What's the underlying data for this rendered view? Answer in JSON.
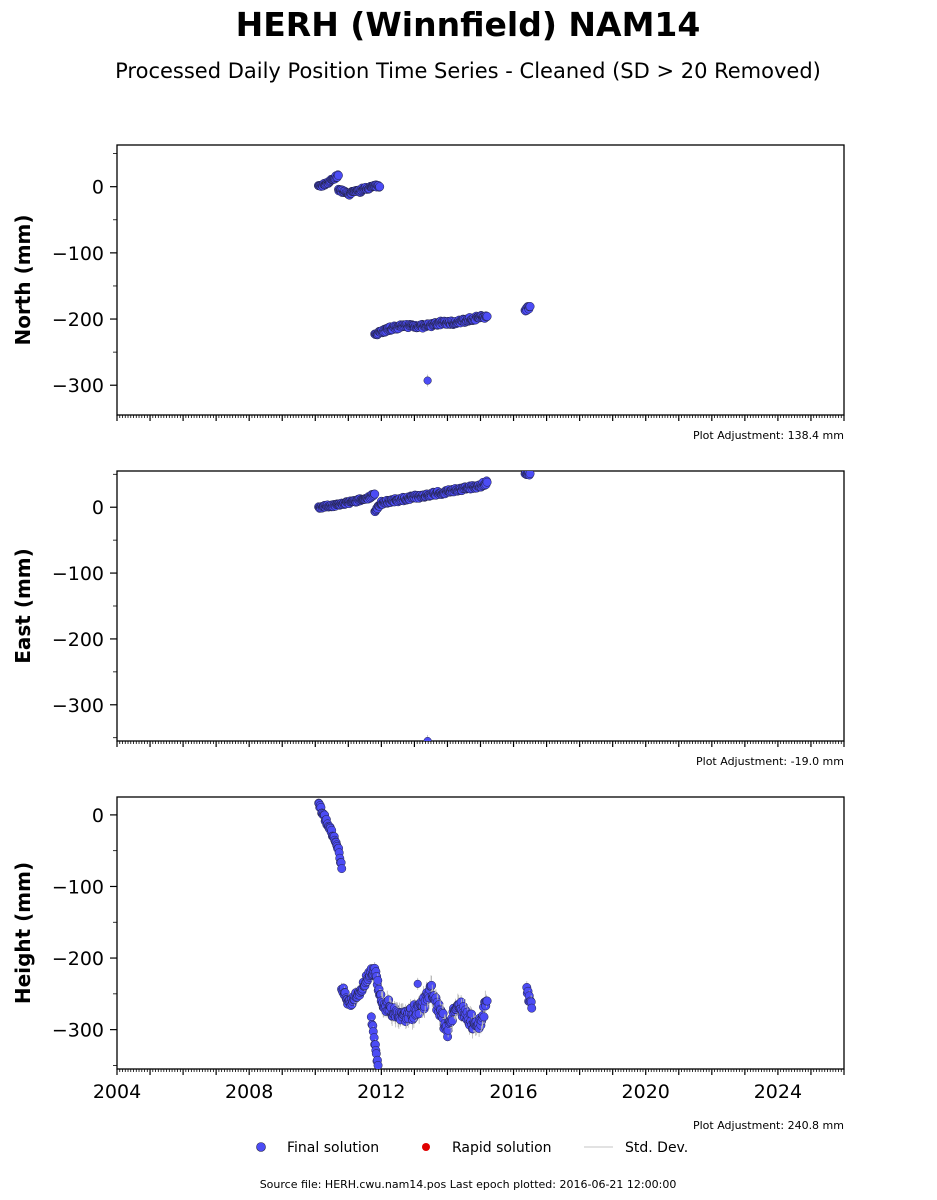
{
  "chart_data": {
    "type": "scatter",
    "title": "HERH (Winnfield) NAM14",
    "subtitle": "Processed Daily Position Time Series - Cleaned (SD > 20 Removed)",
    "xlim": [
      2004,
      2026
    ],
    "x_ticks": [
      2004,
      2008,
      2012,
      2016,
      2020,
      2024
    ],
    "x_tick_labels": [
      "2004",
      "2008",
      "2012",
      "2016",
      "2020",
      "2024"
    ],
    "panels": [
      {
        "ylabel": "North (mm)",
        "ylim": [
          -345,
          63
        ],
        "y_ticks": [
          0,
          -100,
          -200,
          -300
        ],
        "y_tick_labels": [
          "0",
          "−100",
          "−200",
          "−300"
        ],
        "adjustment": "Plot Adjustment: 138.4 mm",
        "segments": [
          {
            "x": [
              2010.1,
              2010.3,
              2010.5,
              2010.7
            ],
            "y": [
              0,
              4,
              10,
              17
            ],
            "sd": 2
          },
          {
            "x": [
              2010.7,
              2010.9,
              2011.0,
              2011.2,
              2011.4
            ],
            "y": [
              -5,
              -8,
              -13,
              -6,
              -7
            ],
            "sd": 2
          },
          {
            "x": [
              2011.4,
              2011.6,
              2011.8,
              2011.95
            ],
            "y": [
              -4,
              -2,
              1,
              0
            ],
            "sd": 2
          },
          {
            "x": [
              2011.8,
              2012.3,
              2012.8,
              2013.3,
              2013.8,
              2014.3,
              2014.8,
              2015.2
            ],
            "y": [
              -222,
              -214,
              -210,
              -211,
              -206,
              -205,
              -199,
              -196
            ],
            "sd": 3
          },
          {
            "x": [
              2016.35,
              2016.5
            ],
            "y": [
              -186,
              -181
            ],
            "sd": 3
          }
        ],
        "outliers": [
          {
            "x": 2013.4,
            "y": -293
          }
        ]
      },
      {
        "ylabel": "East (mm)",
        "ylim": [
          -355,
          55
        ],
        "y_ticks": [
          0,
          -100,
          -200,
          -300
        ],
        "y_tick_labels": [
          "0",
          "−100",
          "−200",
          "−300"
        ],
        "adjustment": "Plot Adjustment: -19.0 mm",
        "segments": [
          {
            "x": [
              2010.1,
              2010.6,
              2011.1,
              2011.6,
              2011.8
            ],
            "y": [
              0,
              3,
              8,
              14,
              20
            ],
            "sd": 2
          },
          {
            "x": [
              2011.8,
              2011.9,
              2012.0
            ],
            "y": [
              -8,
              0,
              5
            ],
            "sd": 2
          },
          {
            "x": [
              2012.0,
              2012.6,
              2013.2,
              2013.8,
              2014.4,
              2015.0,
              2015.2
            ],
            "y": [
              7,
              12,
              17,
              22,
              27,
              33,
              38
            ],
            "sd": 3
          },
          {
            "x": [
              2016.35,
              2016.5
            ],
            "y": [
              50,
              51
            ],
            "sd": 3
          }
        ],
        "outliers": [
          {
            "x": 2013.4,
            "y": -355
          }
        ]
      },
      {
        "ylabel": "Height (mm)",
        "ylim": [
          -355,
          25
        ],
        "y_ticks": [
          0,
          -100,
          -200,
          -300
        ],
        "y_tick_labels": [
          "0",
          "−100",
          "−200",
          "−300"
        ],
        "adjustment": "Plot Adjustment: 240.8 mm",
        "segments": [
          {
            "x": [
              2010.1,
              2010.3,
              2010.5,
              2010.7,
              2010.8
            ],
            "y": [
              15,
              -5,
              -25,
              -50,
              -75
            ],
            "sd": 4
          },
          {
            "x": [
              2010.8,
              2011.0,
              2011.3,
              2011.6,
              2011.8,
              2012.0
            ],
            "y": [
              -240,
              -265,
              -250,
              -225,
              -215,
              -260
            ],
            "sd": 6
          },
          {
            "x": [
              2011.7,
              2011.8,
              2011.9
            ],
            "y": [
              -285,
              -320,
              -350
            ],
            "sd": 5
          },
          {
            "x": [
              2012.0,
              2012.4,
              2012.8,
              2013.2,
              2013.5,
              2013.8,
              2014.0,
              2014.3,
              2014.6,
              2014.9,
              2015.2
            ],
            "y": [
              -260,
              -275,
              -280,
              -270,
              -245,
              -280,
              -300,
              -265,
              -280,
              -300,
              -260
            ],
            "sd": 10
          },
          {
            "x": [
              2016.4,
              2016.55
            ],
            "y": [
              -245,
              -270
            ],
            "sd": 6
          }
        ],
        "outliers": [
          {
            "x": 2013.1,
            "y": -236
          }
        ]
      }
    ],
    "legend": {
      "position": "bottom-center",
      "entries": [
        {
          "label": "Final solution",
          "color": "#4c4cf5"
        },
        {
          "label": "Rapid solution",
          "color": "#e00000"
        },
        {
          "label": "Std. Dev.",
          "color": "#c8c8c8"
        }
      ]
    },
    "footer": "Source file: HERH.cwu.nam14.pos  Last epoch plotted: 2016-06-21 12:00:00",
    "colors": {
      "final": "#4c4cf5",
      "edge": "#222244",
      "std": "#b8b8b8",
      "rapid": "#e00000"
    }
  }
}
